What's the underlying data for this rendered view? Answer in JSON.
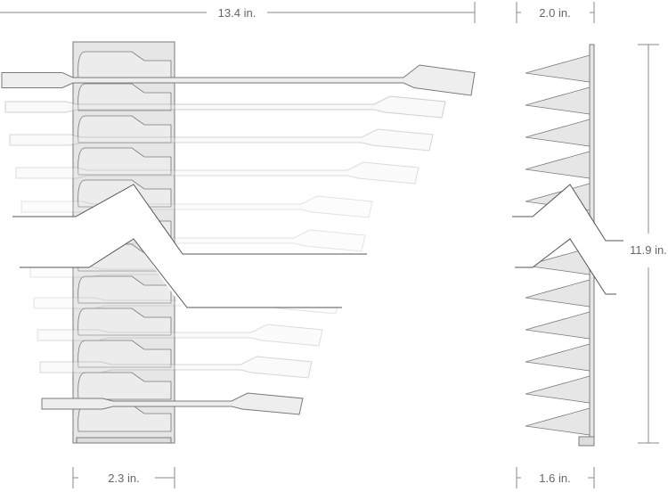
{
  "dimensions": {
    "overall_width": "13.4 in.",
    "side_depth_top": "2.0 in.",
    "height": "11.9 in.",
    "rack_width": "2.3 in.",
    "side_depth_bottom": "1.6 in."
  },
  "colors": {
    "line": "#7a7a7a",
    "fill": "#e6e6e6",
    "text": "#666666"
  }
}
